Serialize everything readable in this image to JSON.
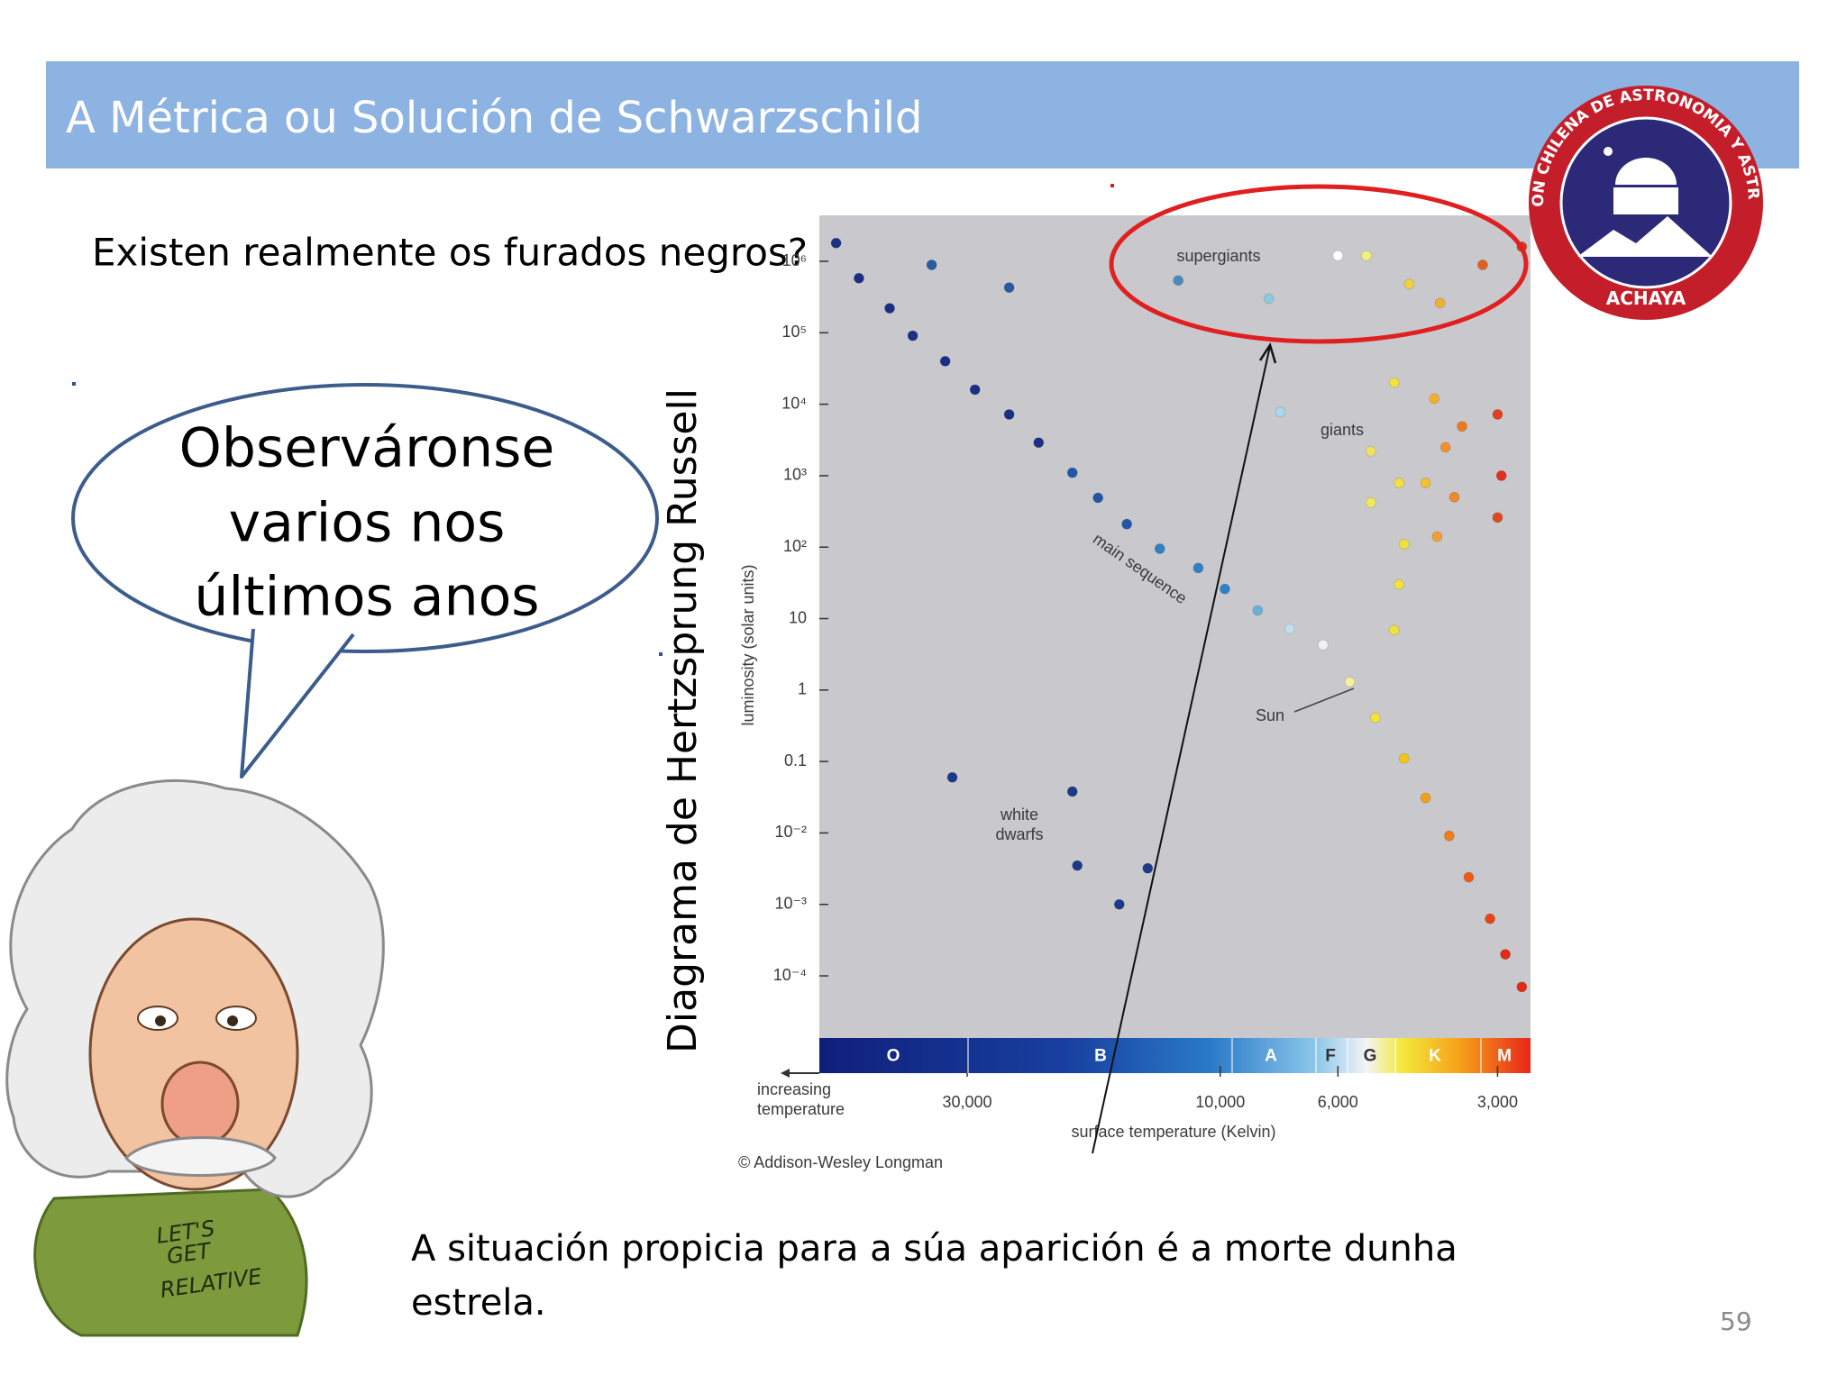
{
  "slide": {
    "title": "A Métrica ou Solución de Schwarzschild",
    "question": "Existen realmente os furados negros?",
    "speech_bubble": [
      "Observáronse",
      "varios nos",
      "últimos anos"
    ],
    "vertical_label": "Diagrama de Hertzsprung Russell",
    "footer_text": "A situación propicia para a súa aparición é a morte dunha estrela.",
    "page_number": 59,
    "logo": {
      "ring_text": "ASOCIACION CHILENA DE ASTRONOMIA Y ASTRONAUTICA",
      "bottom_text": "ACHAYA"
    },
    "shirt_text": [
      "LET'S",
      "GET",
      "RELATIVE"
    ]
  },
  "chart_data": {
    "type": "scatter",
    "x_label": "surface temperature (Kelvin)",
    "y_label": "luminosity (solar units)",
    "x_note": "increasing temperature",
    "credit": "© Addison-Wesley Longman",
    "sun_label": "Sun",
    "spectral_classes": [
      "O",
      "B",
      "A",
      "F",
      "G",
      "K",
      "M"
    ],
    "log_x": true,
    "log_y": true,
    "xlim": [
      57000,
      2600
    ],
    "ylim": [
      1.35e-05,
      4400000
    ],
    "xticks": [
      {
        "value": 30000,
        "label": "30,000"
      },
      {
        "value": 10000,
        "label": "10,000"
      },
      {
        "value": 6000,
        "label": "6,000"
      },
      {
        "value": 3000,
        "label": "3,000"
      }
    ],
    "yticks": [
      {
        "value": 1000000,
        "label": "10⁶"
      },
      {
        "value": 100000,
        "label": "10⁵"
      },
      {
        "value": 10000,
        "label": "10⁴"
      },
      {
        "value": 1000,
        "label": "10³"
      },
      {
        "value": 100,
        "label": "10²"
      },
      10,
      1,
      0.1,
      {
        "value": 0.01,
        "label": "10⁻²"
      },
      {
        "value": 0.001,
        "label": "10⁻³"
      },
      {
        "value": 0.0001,
        "label": "10⁻⁴"
      }
    ],
    "series": [
      {
        "name": "main sequence",
        "x": [
          53000,
          48000,
          42000,
          38000,
          33000,
          29000,
          25000,
          22000,
          19000,
          17000,
          15000,
          13000,
          11000,
          9800,
          8500,
          7400,
          6400,
          5700,
          5100,
          4500,
          4100,
          3700,
          3400,
          3100,
          2900,
          2700
        ],
        "values": [
          1800000,
          580000,
          220000,
          91000,
          40000,
          16000,
          7200,
          2900,
          1100,
          490,
          210,
          95,
          51,
          26,
          13,
          7.2,
          4.3,
          1.3,
          0.41,
          0.11,
          0.031,
          0.0091,
          0.0024,
          0.00063,
          0.0002,
          7e-05
        ],
        "colors": [
          "#1b2f86",
          "#1b2f86",
          "#1b2f86",
          "#1b2f86",
          "#1b2f86",
          "#1b2f86",
          "#1b2f86",
          "#1b2f86",
          "#2456a8",
          "#2456a8",
          "#2456a8",
          "#2f80c4",
          "#2f80c4",
          "#2f80c4",
          "#6ab0da",
          "#bde0ef",
          "#f2f2f2",
          "#f5ef9a",
          "#f3e23a",
          "#f3c51c",
          "#f2a01a",
          "#ef7e17",
          "#ec5d14",
          "#e84415",
          "#e32a14",
          "#e32a14"
        ]
      },
      {
        "name": "supergiants",
        "x": [
          35000,
          25000,
          12000,
          8100,
          6000,
          5300,
          4400,
          3850,
          3200,
          2700
        ],
        "values": [
          890000,
          430000,
          540000,
          300000,
          1200000,
          1200000,
          480000,
          260000,
          890000,
          1600000
        ],
        "colors": [
          "#2a5aa0",
          "#2a5aa0",
          "#4a8ac0",
          "#90c8e0",
          "#ffffff",
          "#f0f080",
          "#f0d040",
          "#f0b030",
          "#e06020",
          "#e03020"
        ]
      },
      {
        "name": "giants",
        "x": [
          7700,
          4700,
          3950,
          3500,
          3000,
          5200,
          4600,
          4100,
          3760,
          2950,
          5200,
          3620,
          3000,
          4500,
          3900,
          4600,
          4700
        ],
        "values": [
          7800,
          20000,
          12000,
          4900,
          7200,
          2200,
          790,
          790,
          2500,
          1000,
          420,
          500,
          260,
          110,
          140,
          30,
          6.9
        ],
        "colors": [
          "#a8d8ec",
          "#f0e040",
          "#f2b030",
          "#ee7a20",
          "#e44020",
          "#f0e060",
          "#f0e040",
          "#f2c030",
          "#f09030",
          "#e03020",
          "#f0e860",
          "#ef8a28",
          "#e04822",
          "#f0e040",
          "#f0a030",
          "#f0e040",
          "#f0e040"
        ]
      },
      {
        "name": "white dwarfs",
        "x": [
          32000,
          19000,
          18600,
          15500,
          13700
        ],
        "values": [
          0.06,
          0.038,
          0.0035,
          0.001,
          0.0032
        ],
        "colors": [
          "#1a3a8a",
          "#1a3a8a",
          "#1a3a8a",
          "#1a3a8a",
          "#1a3a8a"
        ]
      }
    ]
  }
}
